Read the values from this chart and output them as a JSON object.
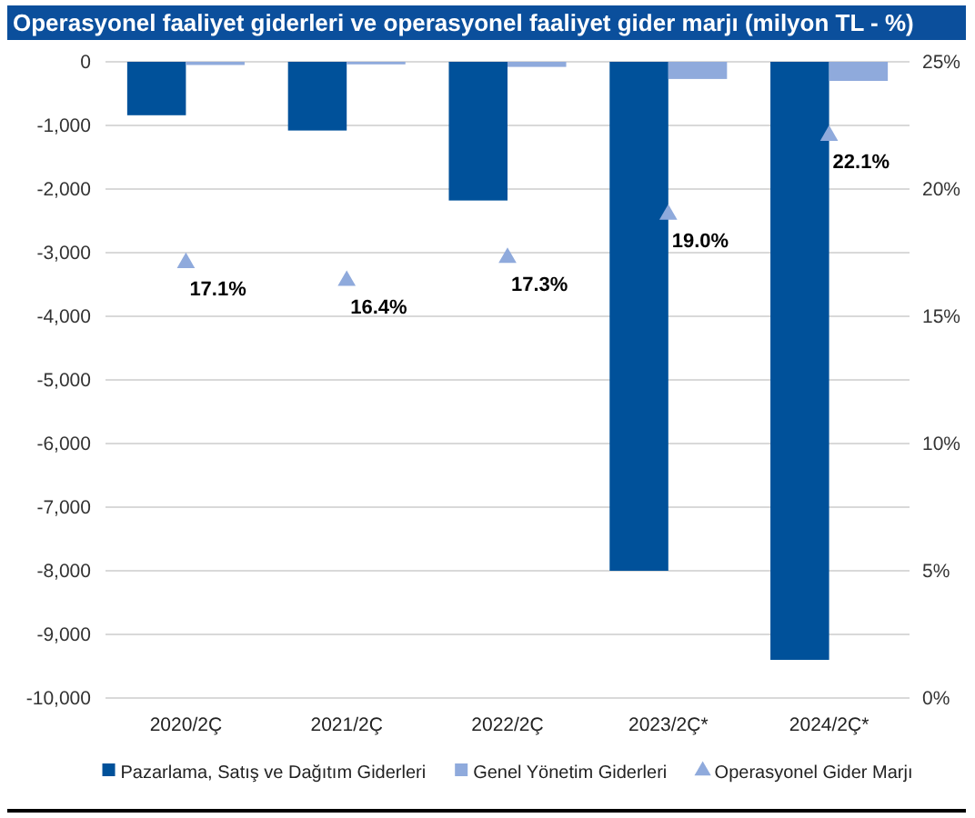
{
  "chart_data": {
    "type": "bar",
    "title": "Operasyonel faaliyet giderleri ve operasyonel faaliyet gider marjı (milyon TL - %)",
    "categories": [
      "2020/2Ç",
      "2021/2Ç",
      "2022/2Ç",
      "2023/2Ç*",
      "2024/2Ç*"
    ],
    "series": [
      {
        "name": "Pazarlama, Satış ve Dağıtım Giderleri",
        "color": "#00519a",
        "values": [
          -840,
          -1080,
          -2180,
          -8000,
          -9400
        ]
      },
      {
        "name": "Genel Yönetim Giderleri",
        "color": "#8faadc",
        "values": [
          -50,
          -40,
          -80,
          -270,
          -300
        ]
      },
      {
        "name": "Operasyonel Gider Marjı",
        "type": "scatter",
        "axis": "y2",
        "marker": "triangle",
        "color": "#8faadc",
        "values": [
          17.1,
          16.4,
          17.3,
          19.0,
          22.1
        ],
        "value_labels": [
          "17.1%",
          "16.4%",
          "17.3%",
          "19.0%",
          "22.1%"
        ]
      }
    ],
    "ylim": [
      -10000,
      0
    ],
    "yticks": [
      {
        "value": -10000,
        "label": "-10,000"
      },
      {
        "value": -9000,
        "label": "-9,000"
      },
      {
        "value": -8000,
        "label": "-8,000"
      },
      {
        "value": -7000,
        "label": "-7,000"
      },
      {
        "value": -6000,
        "label": "-6,000"
      },
      {
        "value": -5000,
        "label": "-5,000"
      },
      {
        "value": -4000,
        "label": "-4,000"
      },
      {
        "value": -3000,
        "label": "-3,000"
      },
      {
        "value": -2000,
        "label": "-2,000"
      },
      {
        "value": -1000,
        "label": "-1,000"
      },
      0
    ],
    "y2lim": [
      0,
      25
    ],
    "y2ticks": [
      {
        "value": 0,
        "label": "0%"
      },
      {
        "value": 5,
        "label": "5%"
      },
      {
        "value": 10,
        "label": "10%"
      },
      {
        "value": 15,
        "label": "15%"
      },
      {
        "value": 20,
        "label": "20%"
      },
      {
        "value": 25,
        "label": "25%"
      }
    ],
    "grid": "y",
    "legend": "bottom"
  }
}
